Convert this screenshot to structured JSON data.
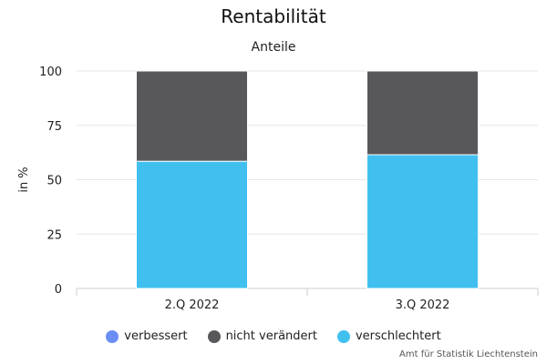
{
  "chart_data": {
    "type": "bar",
    "stacked": true,
    "title": "Rentabilität",
    "subtitle": "Anteile",
    "xlabel": "",
    "ylabel": "in %",
    "ylim": [
      0,
      100
    ],
    "yticks": [
      0,
      25,
      50,
      75,
      100
    ],
    "grid": true,
    "legend_position": "bottom",
    "categories": [
      "2.Q 2022",
      "3.Q 2022"
    ],
    "series": [
      {
        "name": "verbessert",
        "color": "#6b8ef5",
        "values": [
          0,
          0
        ]
      },
      {
        "name": "nicht verändert",
        "color": "#58585a",
        "values": [
          41.5,
          38.5
        ]
      },
      {
        "name": "verschlechtert",
        "color": "#41c0f0",
        "values": [
          58.5,
          61.5
        ]
      }
    ]
  },
  "credits": "Amt für Statistik Liechtenstein"
}
